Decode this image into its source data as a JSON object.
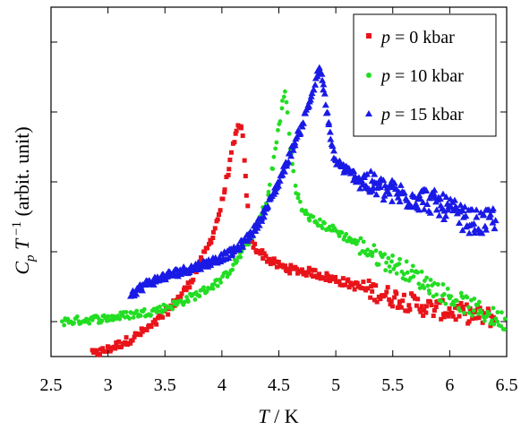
{
  "chart_data": {
    "type": "scatter",
    "xlabel_var": "T",
    "xlabel_unit": " / K",
    "ylabel_parts": [
      "C",
      "p",
      " T",
      " −1",
      "  (arbit. unit)"
    ],
    "xlim": [
      2.5,
      6.5
    ],
    "x_ticks": [
      2.5,
      3,
      3.5,
      4,
      4.5,
      5,
      5.5,
      6,
      6.5
    ],
    "x_tick_labels": [
      "2.5",
      "3",
      "3.5",
      "4",
      "4.5",
      "5",
      "5.5",
      "6",
      "6.5"
    ],
    "ylim": [
      0,
      100
    ],
    "y_ticks_unlabeled": [
      10,
      30,
      50,
      70,
      90
    ],
    "legend_position": "top-right",
    "series": [
      {
        "name": "p = 0 kbar",
        "label_var": "p",
        "label_rest": " = 0 kbar",
        "color": "#e8141a",
        "marker": "square",
        "key_points": [
          [
            2.85,
            0.5
          ],
          [
            3.0,
            2
          ],
          [
            3.2,
            5
          ],
          [
            3.4,
            9
          ],
          [
            3.55,
            14
          ],
          [
            3.7,
            20
          ],
          [
            3.8,
            26
          ],
          [
            3.9,
            33
          ],
          [
            3.95,
            38
          ],
          [
            4.0,
            44
          ],
          [
            4.05,
            52
          ],
          [
            4.1,
            60
          ],
          [
            4.15,
            67
          ],
          [
            4.18,
            64
          ],
          [
            4.22,
            45
          ],
          [
            4.25,
            33
          ],
          [
            4.3,
            31
          ],
          [
            4.4,
            28
          ],
          [
            4.5,
            26
          ],
          [
            4.6,
            25
          ],
          [
            4.8,
            24
          ],
          [
            5.0,
            22
          ],
          [
            5.2,
            20
          ],
          [
            5.4,
            18
          ],
          [
            5.6,
            16
          ],
          [
            5.8,
            14
          ],
          [
            6.0,
            13
          ],
          [
            6.2,
            12
          ],
          [
            6.4,
            11
          ]
        ]
      },
      {
        "name": "p = 10 kbar",
        "label_var": "p",
        "label_rest": " = 10 kbar",
        "color": "#22dd22",
        "marker": "circle",
        "key_points": [
          [
            2.6,
            10
          ],
          [
            2.8,
            10.5
          ],
          [
            3.0,
            11
          ],
          [
            3.2,
            12
          ],
          [
            3.4,
            13
          ],
          [
            3.6,
            15
          ],
          [
            3.8,
            18
          ],
          [
            4.0,
            22
          ],
          [
            4.1,
            26
          ],
          [
            4.2,
            31
          ],
          [
            4.3,
            37
          ],
          [
            4.4,
            45
          ],
          [
            4.45,
            55
          ],
          [
            4.5,
            66
          ],
          [
            4.55,
            76
          ],
          [
            4.57,
            72
          ],
          [
            4.6,
            60
          ],
          [
            4.65,
            48
          ],
          [
            4.7,
            42
          ],
          [
            4.8,
            39
          ],
          [
            5.0,
            36
          ],
          [
            5.2,
            32
          ],
          [
            5.4,
            28
          ],
          [
            5.6,
            25
          ],
          [
            5.8,
            21
          ],
          [
            6.0,
            17
          ],
          [
            6.2,
            14
          ],
          [
            6.4,
            11
          ],
          [
            6.5,
            10
          ]
        ]
      },
      {
        "name": "p = 15 kbar",
        "label_var": "p",
        "label_rest": " = 15 kbar",
        "color": "#1a1ae6",
        "marker": "triangle",
        "key_points": [
          [
            3.2,
            18
          ],
          [
            3.35,
            21
          ],
          [
            3.5,
            23
          ],
          [
            3.7,
            25
          ],
          [
            3.9,
            27
          ],
          [
            4.1,
            30
          ],
          [
            4.2,
            33
          ],
          [
            4.3,
            37
          ],
          [
            4.4,
            43
          ],
          [
            4.5,
            50
          ],
          [
            4.6,
            58
          ],
          [
            4.7,
            66
          ],
          [
            4.8,
            76
          ],
          [
            4.85,
            82
          ],
          [
            4.88,
            80
          ],
          [
            4.92,
            70
          ],
          [
            4.96,
            61
          ],
          [
            5.0,
            56
          ],
          [
            5.1,
            53
          ],
          [
            5.2,
            51
          ],
          [
            5.4,
            48
          ],
          [
            5.6,
            46
          ],
          [
            5.8,
            45
          ],
          [
            6.0,
            42
          ],
          [
            6.15,
            39
          ],
          [
            6.3,
            38
          ],
          [
            6.4,
            40
          ]
        ]
      }
    ]
  }
}
